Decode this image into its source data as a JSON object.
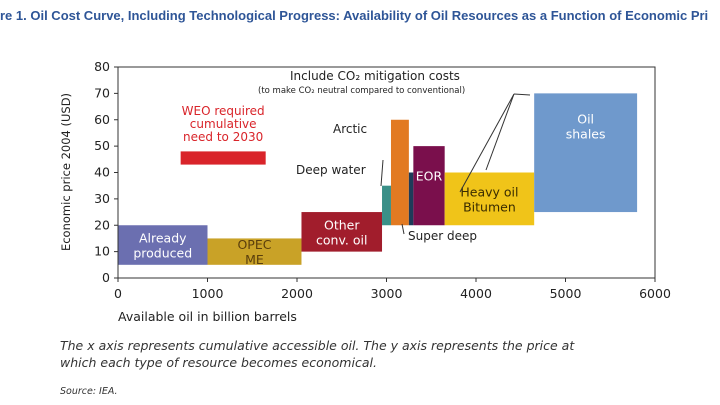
{
  "figure": {
    "title": "re 1. Oil Cost Curve, Including Technological Progress: Availability of Oil Resources as a Function of Economic Pri",
    "caption_line1": "The x axis represents cumulative accessible oil. The y axis represents the price at",
    "caption_line2": "which each type of resource becomes economical.",
    "source": "Source: IEA."
  },
  "colors": {
    "already": "#6b6fb0",
    "opec": "#c9a227",
    "other_conv": "#a11d2c",
    "deep_water": "#3a9088",
    "arctic": "#e27a22",
    "super_deep": "#1e3b59",
    "eor": "#7a0f4c",
    "heavy": "#f0c419",
    "oil_shales": "#6f99cc",
    "weo": "#d9242a"
  },
  "chart_data": {
    "type": "bar",
    "title": "",
    "xlabel": "Available oil in billion barrels",
    "ylabel": "Economic price 2004 (USD)",
    "xlim": [
      0,
      6000
    ],
    "ylim": [
      0,
      80
    ],
    "xticks": [
      "0",
      "1000",
      "2000",
      "3000",
      "4000",
      "5000",
      "6000"
    ],
    "yticks": [
      "0",
      "10",
      "20",
      "30",
      "40",
      "50",
      "60",
      "70",
      "80"
    ],
    "grid": false,
    "segments": [
      {
        "label": "Already produced",
        "x0": 0,
        "x1": 1000,
        "y0": 5,
        "y1": 20,
        "color_key": "already",
        "label_color": "#ffffff",
        "label_lines": [
          "Already",
          "produced"
        ]
      },
      {
        "label": "OPEC ME",
        "x0": 1000,
        "x1": 2050,
        "y0": 5,
        "y1": 15,
        "color_key": "opec",
        "label_color": "#5a3e0c",
        "label_lines": [
          "OPEC",
          "ME"
        ]
      },
      {
        "label": "Other conv. oil",
        "x0": 2050,
        "x1": 2950,
        "y0": 10,
        "y1": 25,
        "color_key": "other_conv",
        "label_color": "#ffffff",
        "label_lines": [
          "Other",
          "conv. oil"
        ]
      },
      {
        "label": "Deep water",
        "x0": 2950,
        "x1": 3050,
        "y0": 20,
        "y1": 35,
        "color_key": "deep_water",
        "label_color": "#222222",
        "label_lines": [
          "Deep water"
        ]
      },
      {
        "label": "Arctic",
        "x0": 3050,
        "x1": 3250,
        "y0": 20,
        "y1": 60,
        "color_key": "arctic",
        "label_color": "#222222",
        "label_lines": [
          "Arctic"
        ]
      },
      {
        "label": "Super deep",
        "x0": 3250,
        "x1": 3300,
        "y0": 20,
        "y1": 40,
        "color_key": "super_deep",
        "label_color": "#222222",
        "label_lines": [
          "Super deep"
        ]
      },
      {
        "label": "EOR",
        "x0": 3300,
        "x1": 3650,
        "y0": 20,
        "y1": 50,
        "color_key": "eor",
        "label_color": "#ffffff",
        "label_lines": [
          "EOR"
        ]
      },
      {
        "label": "Heavy oil Bitumen",
        "x0": 3650,
        "x1": 4650,
        "y0": 20,
        "y1": 40,
        "color_key": "heavy",
        "label_color": "#3a2c00",
        "label_lines": [
          "Heavy oil",
          "Bitumen"
        ]
      },
      {
        "label": "Oil shales",
        "x0": 4650,
        "x1": 5800,
        "y0": 25,
        "y1": 70,
        "color_key": "oil_shales",
        "label_color": "#ffffff",
        "label_lines": [
          "Oil",
          "shales"
        ]
      }
    ],
    "weo_requirement": {
      "label_lines": [
        "WEO required",
        "cumulative",
        "need to 2030"
      ],
      "x0": 700,
      "x1": 1650,
      "y0": 43,
      "y1": 48,
      "color_key": "weo"
    },
    "annotations": {
      "mitigation_title": "Include CO₂ mitigation costs",
      "mitigation_sub": "(to make CO₂ neutral compared to conventional)",
      "arctic": "Arctic",
      "deep_water": "Deep water",
      "super_deep": "Super deep"
    }
  }
}
